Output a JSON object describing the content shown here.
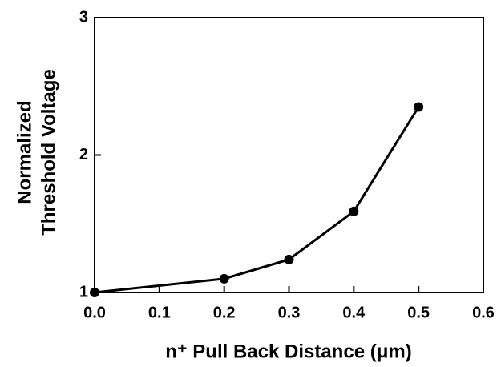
{
  "chart_data": {
    "type": "line",
    "x": [
      0,
      0.2,
      0.3,
      0.4,
      0.5
    ],
    "series": [
      {
        "values": [
          1.0,
          1.1,
          1.24,
          1.59,
          2.35
        ],
        "color": "#000000"
      }
    ],
    "xlim": [
      0,
      0.6
    ],
    "xticks": [
      {
        "value": 0,
        "label": "0.0"
      },
      0.1,
      0.2,
      0.3,
      0.4,
      0.5,
      0.6
    ],
    "ylim": [
      1,
      3
    ],
    "yticks": [
      1,
      2,
      3
    ],
    "xlabel": "n⁺ Pull Back Distance (μm)",
    "ylabel": [
      "Normalized",
      "Threshold Voltage"
    ]
  }
}
